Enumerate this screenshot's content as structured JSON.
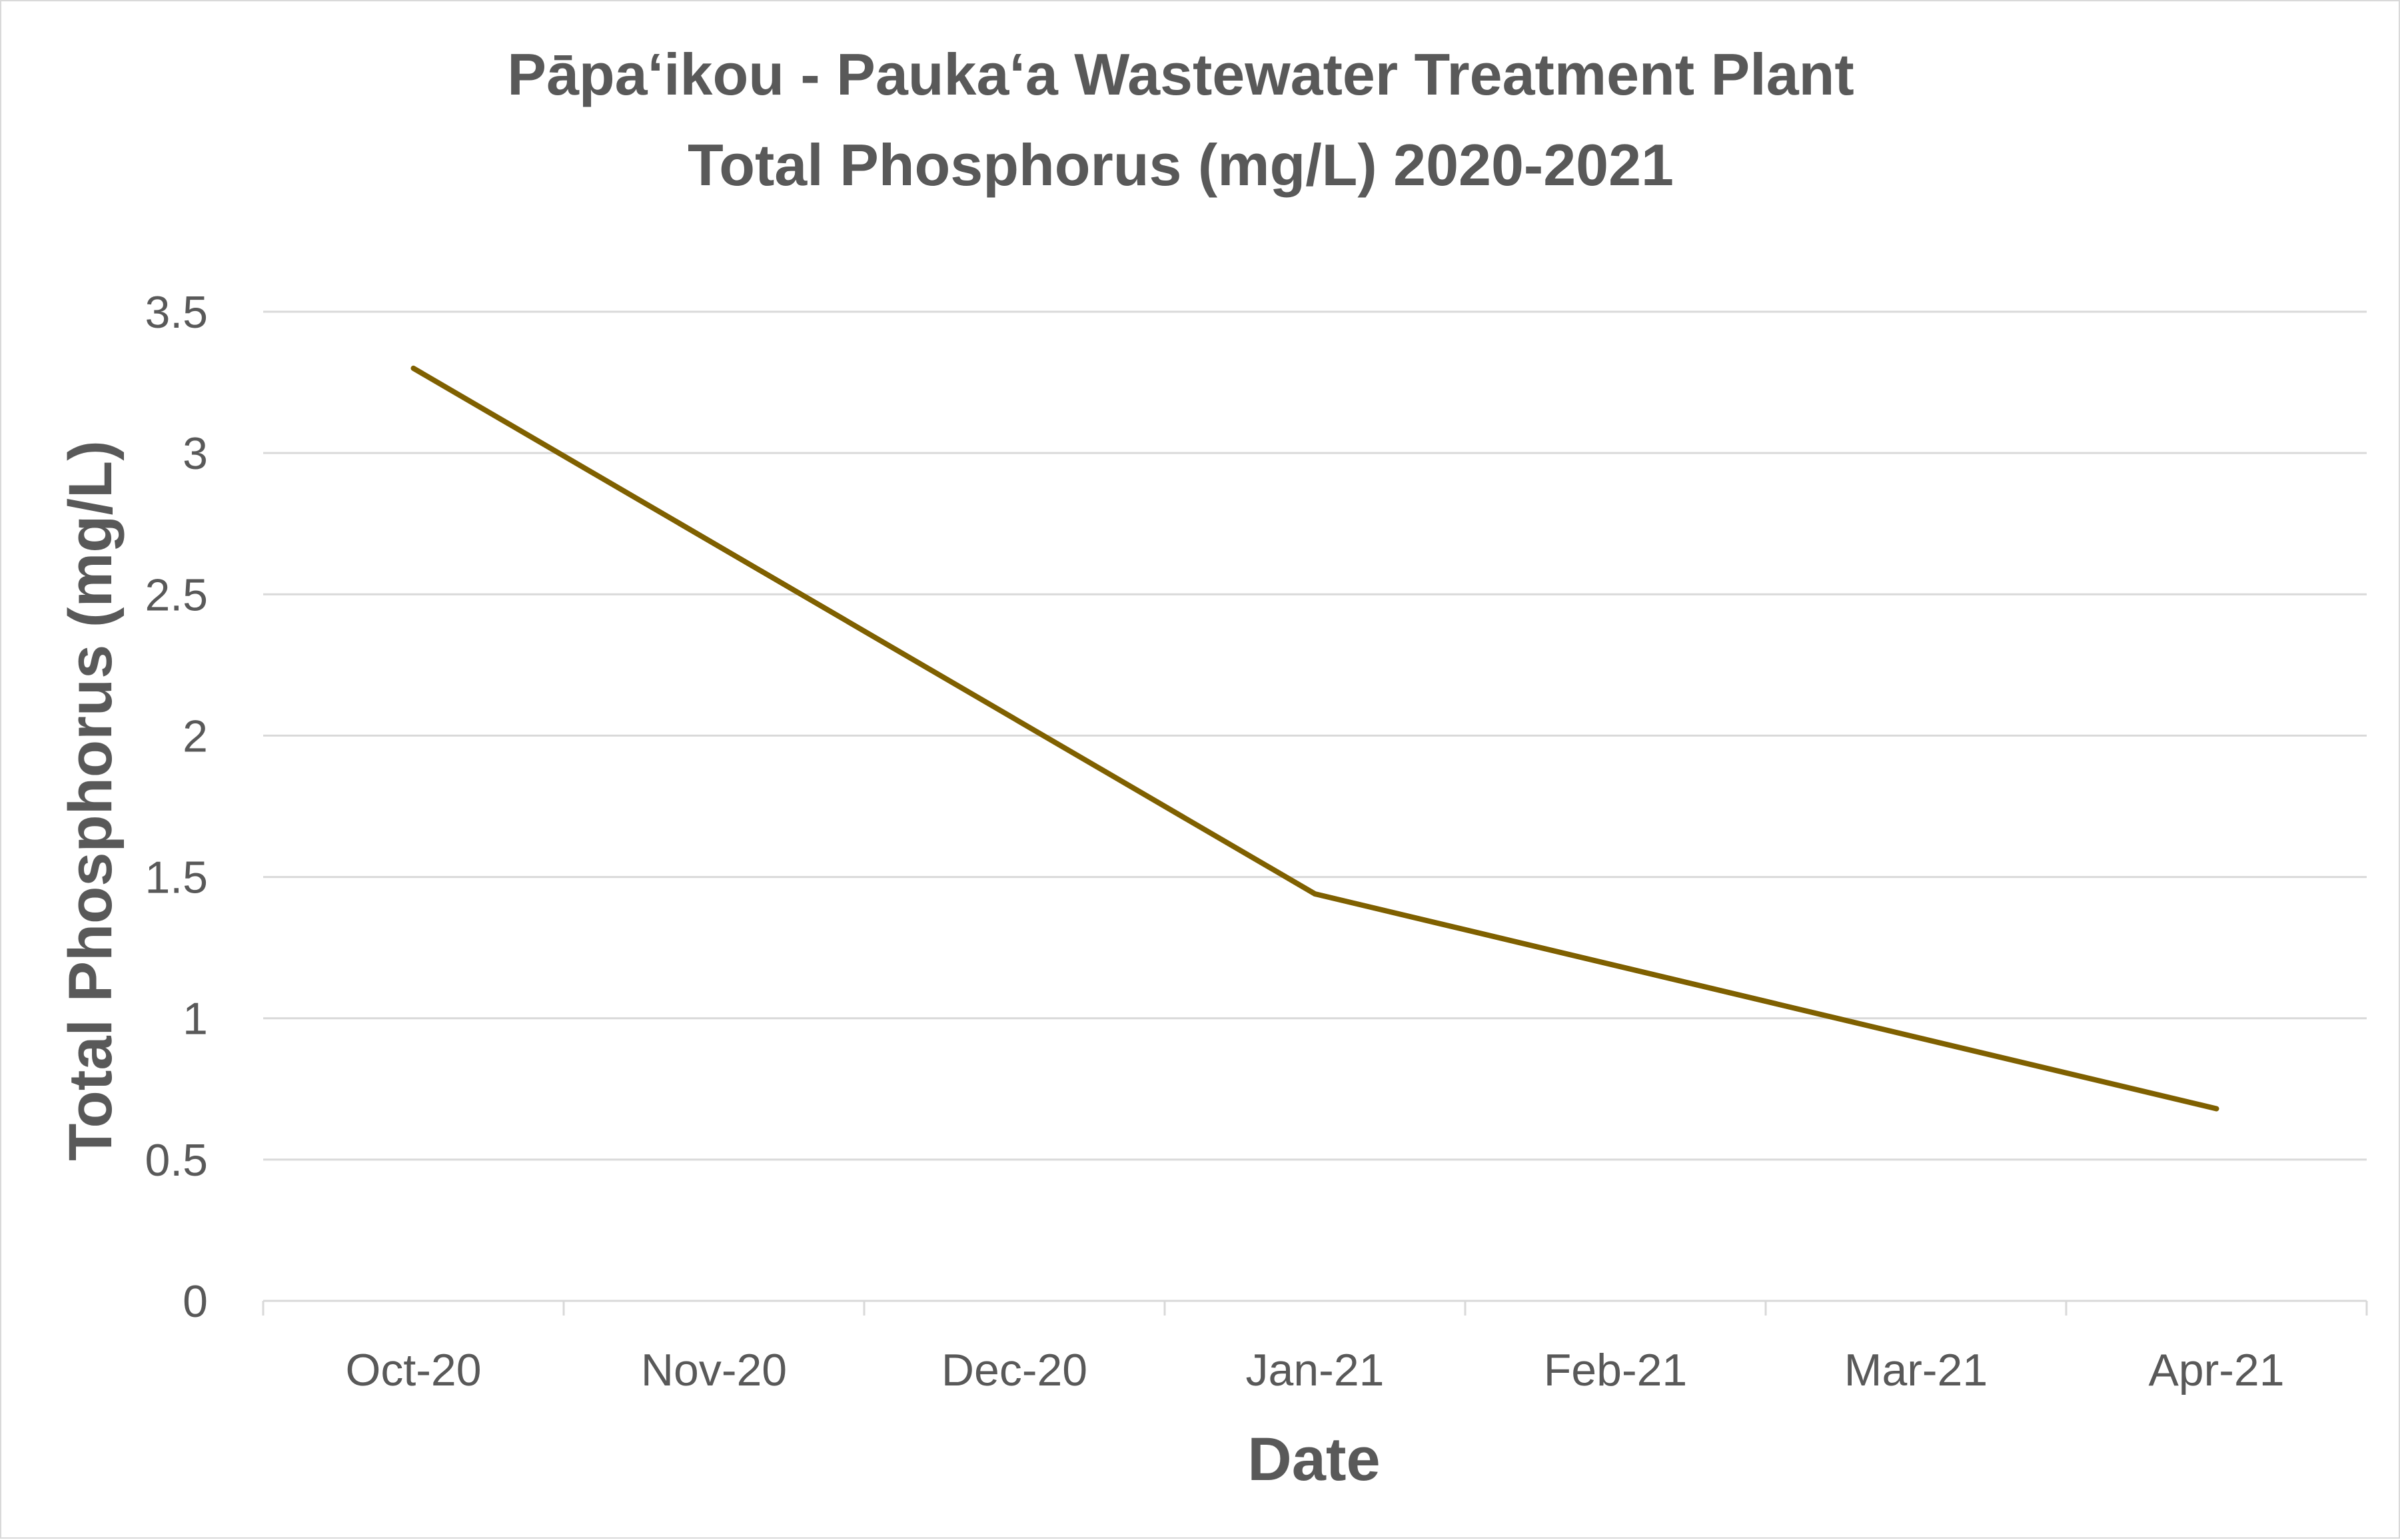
{
  "chart_data": {
    "type": "line",
    "title": "Pāpaʻikou - Paukaʻa Wastewater Treatment Plant",
    "subtitle": "Total Phosphorus (mg/L) 2020-2021",
    "xlabel": "Date",
    "ylabel": "Total Phosphorus (mg/L)",
    "categories": [
      "Oct-20",
      "Nov-20",
      "Dec-20",
      "Jan-21",
      "Feb-21",
      "Mar-21",
      "Apr-21"
    ],
    "series": [
      {
        "points": [
          {
            "x": "Oct-20",
            "y": 3.3
          },
          {
            "x": "Jan-21",
            "y": 1.44
          },
          {
            "x": "Apr-21",
            "y": 0.68
          }
        ]
      }
    ],
    "ylim": [
      0,
      3.5
    ],
    "yticks": [
      0,
      0.5,
      1,
      1.5,
      2,
      2.5,
      3,
      3.5
    ],
    "ytick_labels": [
      "0",
      "0.5",
      "1",
      "1.5",
      "2",
      "2.5",
      "3",
      "3.5"
    ],
    "grid": "horizontal",
    "legend": "none",
    "colors": {
      "line": "#7f6000",
      "grid": "#d9d9d9",
      "text": "#595959"
    }
  }
}
